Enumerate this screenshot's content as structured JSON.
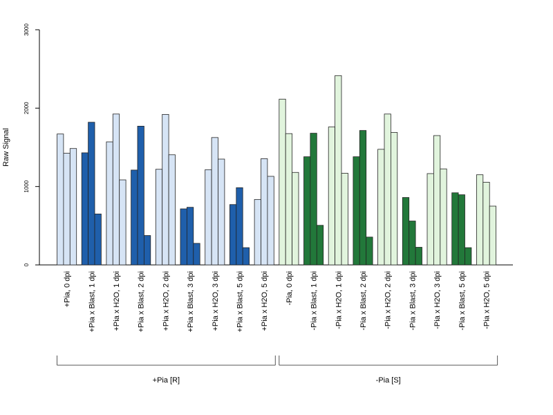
{
  "chart_data": {
    "type": "bar",
    "ylabel": "Raw Signal",
    "ylim": [
      0,
      3000
    ],
    "yticks": [
      0,
      1000,
      2000,
      3000
    ],
    "ytick_labels": [
      "0",
      "1000",
      "2000",
      "3000"
    ],
    "bars_per_group": 3,
    "grid": false,
    "legend": "none",
    "categories": [
      "+Pia, 0 dpi",
      "+Pia x Blast, 1 dpi",
      "+Pia x H2O, 1 dpi",
      "+Pia x Blast, 2 dpi",
      "+Pia x H2O, 2 dpi",
      "+Pia x Blast, 3 dpi",
      "+Pia x H2O, 3 dpi",
      "+Pia x Blast, 5 dpi",
      "+Pia x H2O, 5 dpi",
      "-Pia, 0 dpi",
      "-Pia x Blast, 1 dpi",
      "-Pia x H2O, 1 dpi",
      "-Pia x Blast, 2 dpi",
      "-Pia x H2O, 2 dpi",
      "-Pia x Blast, 3 dpi",
      "-Pia x H2O, 3 dpi",
      "-Pia x Blast, 5 dpi",
      "-Pia x H2O, 5 dpi"
    ],
    "values": [
      [
        1670,
        1425,
        1485
      ],
      [
        1430,
        1820,
        650
      ],
      [
        1570,
        1925,
        1085
      ],
      [
        1210,
        1770,
        375
      ],
      [
        1220,
        1920,
        1405
      ],
      [
        715,
        735,
        275
      ],
      [
        1215,
        1625,
        1350
      ],
      [
        770,
        985,
        220
      ],
      [
        835,
        1355,
        1130
      ],
      [
        2115,
        1675,
        1180
      ],
      [
        1380,
        1680,
        505
      ],
      [
        1760,
        2415,
        1170
      ],
      [
        1380,
        1715,
        355
      ],
      [
        1475,
        1925,
        1690
      ],
      [
        860,
        560,
        225
      ],
      [
        1165,
        1650,
        1225
      ],
      [
        920,
        895,
        220
      ],
      [
        1150,
        1055,
        750
      ]
    ],
    "bar_colors": [
      "#d6e4f5",
      "#1f5fab",
      "#d6e4f5",
      "#1f5fab",
      "#d6e4f5",
      "#1f5fab",
      "#d6e4f5",
      "#1f5fab",
      "#d6e4f5",
      "#e1f4dd",
      "#22783a",
      "#e1f4dd",
      "#22783a",
      "#e1f4dd",
      "#22783a",
      "#e1f4dd",
      "#22783a",
      "#e1f4dd"
    ],
    "group_brackets": [
      {
        "label": "+Pia [R]",
        "from": 0,
        "to": 8
      },
      {
        "label": "-Pia [S]",
        "from": 9,
        "to": 17
      }
    ]
  }
}
